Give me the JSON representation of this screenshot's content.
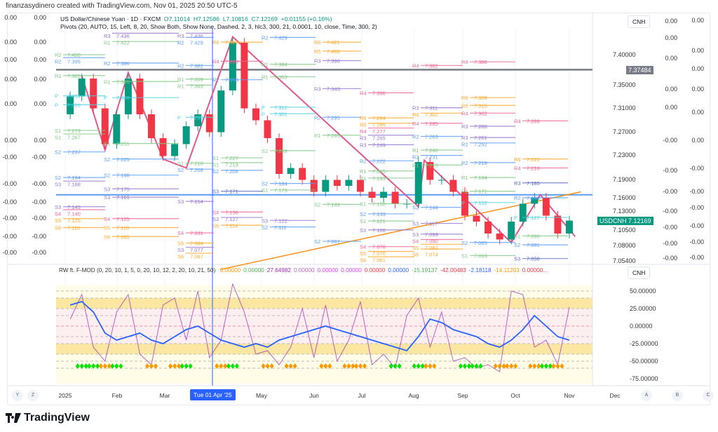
{
  "credit": "finanzasydinero created with TradingView.com, Nov 01, 2025 20:50 UTC-5",
  "legend": {
    "symbol": "US Dollar/Chinese Yuan · 1D · FXCM",
    "open": "O7.11014",
    "high": "H7.12586",
    "low": "L7.10816",
    "close": "C7.12169",
    "change": "+0.01155 (+0.16%)",
    "pivots": "Pivots (20, AUTO, 15, Left, 8, 20, Show Both, Show None, Dashed, 2, 3, hlc3, 300, 21, 0.0001, 10, close, Time, 300, 2)"
  },
  "price_axis": {
    "currency": "CNH",
    "labels": [
      "7.40000",
      "7.35000",
      "7.31000",
      "7.27000",
      "7.23000",
      "7.19000",
      "7.16000",
      "7.13000",
      "7.10500",
      "7.08000",
      "7.05400"
    ],
    "hline_badge": "7.37484",
    "symbol_badge": "USDCNH",
    "last_price": "7.12169"
  },
  "left_axis": {
    "col1": [
      "0.00",
      "0.00",
      "0.00",
      "0.00",
      "0.00",
      "0.00",
      "-0.00",
      "-0.00",
      "-0.00",
      "-0.00",
      "-0.00",
      "-0.00"
    ],
    "col2": [
      "0.00",
      "0.00",
      "0.00",
      "0.00",
      "0.00",
      "0.00",
      "-0.00",
      "-0.00",
      "-0.00",
      "-0.00",
      "-0.00",
      "-0.00"
    ]
  },
  "right_axis": {
    "col1": [
      "0.00",
      "0.00",
      "0.00",
      "0.00",
      "0.00",
      "-0.00",
      "-0.00",
      "-0.00",
      "-0.00",
      "-0.00",
      "-0.00",
      "-0.00"
    ],
    "col2": [
      "0.00",
      "0.00",
      "0.00",
      "0.00",
      "0.00",
      "0.00",
      "-0.00",
      "-0.00",
      "-0.00",
      "-0.00",
      "-0.00",
      "-0.00"
    ]
  },
  "indicator": {
    "title": "RW ft. F-MOD (0, 20, 10, 1, 5, 0, 20, 10, 12, 2, 20, 10, 21, 50)",
    "values": [
      {
        "v": "0.00000",
        "c": "#ff9800"
      },
      {
        "v": "0.00000",
        "c": "#4caf50"
      },
      {
        "v": "27.64982",
        "c": "#9c27b0"
      },
      {
        "v": "0.00000",
        "c": "#ba68c8"
      },
      {
        "v": "0.00000",
        "c": "#e040fb"
      },
      {
        "v": "0.00000",
        "c": "#e040fb"
      },
      {
        "v": "0.00000",
        "c": "#f23645"
      },
      {
        "v": "0.00000",
        "c": "#2962ff"
      },
      {
        "v": "-15.19137",
        "c": "#4caf50"
      },
      {
        "v": "-42.00483",
        "c": "#f23645"
      },
      {
        "v": "-2.18118",
        "c": "#2962ff"
      },
      {
        "v": "-14.11203",
        "c": "#ff9800"
      },
      {
        "v": "0.00000...",
        "c": "#f23645"
      }
    ],
    "currency": "CNH",
    "axis": [
      "50.00000",
      "25.00000",
      "0.00000",
      "-25.00000",
      "-50.00000",
      "-75.00000"
    ]
  },
  "time_axis": {
    "labels": [
      "2025",
      "Feb",
      "Mar",
      "May",
      "Jun",
      "Jul",
      "Aug",
      "Sep",
      "Oct",
      "Nov",
      "Dec"
    ],
    "crosshair": "Tue 01 Apr '25",
    "buttons_left": [
      "Y",
      "Z"
    ],
    "buttons_right": [
      "A",
      "B",
      "C"
    ]
  },
  "brand": "TradingView",
  "colors": {
    "up": "#089981",
    "down": "#f23645",
    "zigzag": "#e0588a",
    "trend": "#f7931a",
    "hline": "#787b86",
    "support": "#5b9cf6"
  },
  "chart_data": {
    "type": "candlestick",
    "title": "US Dollar/Chinese Yuan",
    "interval": "weekly approx",
    "start": "2025-01-01",
    "closes": [
      7.33,
      7.36,
      7.31,
      7.25,
      7.3,
      7.36,
      7.3,
      7.26,
      7.23,
      7.25,
      7.28,
      7.3,
      7.27,
      7.34,
      7.42,
      7.31,
      7.29,
      7.26,
      7.2,
      7.21,
      7.19,
      7.17,
      7.19,
      7.18,
      7.19,
      7.17,
      7.16,
      7.17,
      7.15,
      7.15,
      7.22,
      7.19,
      7.19,
      7.17,
      7.13,
      7.12,
      7.1,
      7.09,
      7.12,
      7.15,
      7.16,
      7.13,
      7.1,
      7.12169
    ],
    "first_open": 7.3,
    "hline": 7.37484,
    "support_line": 7.165,
    "trendline": [
      [
        13,
        7.04
      ],
      [
        44,
        7.17
      ]
    ],
    "zigzag": [
      [
        1,
        7.365
      ],
      [
        3,
        7.24
      ],
      [
        5,
        7.37
      ],
      [
        8,
        7.225
      ],
      [
        10,
        7.21
      ],
      [
        14,
        7.43
      ],
      [
        30,
        7.145
      ],
      [
        30.5,
        7.223
      ],
      [
        38,
        7.085
      ],
      [
        40.5,
        7.165
      ],
      [
        43.5,
        7.095
      ]
    ],
    "pivots": [
      [
        "R2",
        "7.400",
        0,
        "#81c784"
      ],
      [
        "R2",
        "7.395",
        0,
        "#5b9cf6"
      ],
      [
        "R1",
        "7.365",
        0,
        "#81c784"
      ],
      [
        "P",
        "7.331",
        0,
        "#4dd0e1"
      ],
      [
        "P",
        "7.316",
        0,
        "#4dd0e1"
      ],
      [
        "S1",
        "7.273",
        0,
        "#81c784"
      ],
      [
        "S1",
        "7.267",
        0,
        "#81c784"
      ],
      [
        "S2",
        "7.237",
        0,
        "#5b9cf6"
      ],
      [
        "S2",
        "7.194",
        0,
        "#5b9cf6"
      ],
      [
        "S3",
        "7.188",
        0,
        "#9575cd"
      ],
      [
        "S3",
        "7.145",
        0,
        "#9575cd"
      ],
      [
        "S4",
        "7.140",
        0,
        "#f06292"
      ],
      [
        "S5",
        "7.125",
        0,
        "#ffa726"
      ],
      [
        "S6",
        "7.110",
        0,
        "#ffa726"
      ],
      [
        "R3",
        "7.436",
        1,
        "#9575cd"
      ],
      [
        "R1",
        "7.422",
        1,
        "#81c784"
      ],
      [
        "R2",
        "7.386",
        1,
        "#5b9cf6"
      ],
      [
        "R1",
        "7.355",
        1,
        "#81c784"
      ],
      [
        "P",
        "7.328",
        1,
        "#4dd0e1"
      ],
      [
        "S1",
        "7.251",
        1,
        "#81c784"
      ],
      [
        "S2",
        "7.225",
        1,
        "#5b9cf6"
      ],
      [
        "S2",
        "7.198",
        1,
        "#5b9cf6"
      ],
      [
        "S3",
        "7.175",
        1,
        "#9575cd"
      ],
      [
        "S3",
        "7.161",
        1,
        "#9575cd"
      ],
      [
        "S4",
        "7.125",
        1,
        "#f06292"
      ],
      [
        "S5",
        "7.110",
        1,
        "#ffa726"
      ],
      [
        "S6",
        "7.095",
        1,
        "#ffa726"
      ],
      [
        "R3",
        "7.436",
        2,
        "#9575cd"
      ],
      [
        "R2",
        "7.429",
        2,
        "#5b9cf6"
      ],
      [
        "R2",
        "7.382",
        2,
        "#5b9cf6"
      ],
      [
        "R1",
        "7.359",
        2,
        "#81c784"
      ],
      [
        "R1",
        "7.349",
        2,
        "#81c784"
      ],
      [
        "P",
        "7.295",
        2,
        "#4dd0e1"
      ],
      [
        "S1",
        "7.218",
        2,
        "#81c784"
      ],
      [
        "S2",
        "7.208",
        2,
        "#5b9cf6"
      ],
      [
        "S3",
        "7.154",
        2,
        "#9575cd"
      ],
      [
        "S4",
        "7.101",
        2,
        "#f06292"
      ],
      [
        "S5",
        "7.084",
        2,
        "#ffa726"
      ],
      [
        "S3",
        "7.077",
        2,
        "#9575cd"
      ],
      [
        "S6",
        "7.067",
        2,
        "#ffa726"
      ],
      [
        "R6",
        "7.421",
        3,
        "#ffa726"
      ],
      [
        "R4",
        "7.389",
        3,
        "#f06292"
      ],
      [
        "R2",
        "7.358",
        3,
        "#5b9cf6"
      ],
      [
        "S1",
        "7.227",
        3,
        "#81c784"
      ],
      [
        "S1",
        "7.219",
        3,
        "#81c784"
      ],
      [
        "S2",
        "7.206",
        3,
        "#5b9cf6"
      ],
      [
        "S3",
        "7.171",
        3,
        "#5c6bc0"
      ],
      [
        "S4",
        "7.136",
        3,
        "#f06292"
      ],
      [
        "S3",
        "7.127",
        3,
        "#9575cd"
      ],
      [
        "S6",
        "7.114",
        3,
        "#ffa726"
      ],
      [
        "R2",
        "7.429",
        4,
        "#5b9cf6"
      ],
      [
        "R1",
        "7.384",
        4,
        "#81c784"
      ],
      [
        "R1",
        "7.363",
        4,
        "#81c784"
      ],
      [
        "P",
        "7.312",
        4,
        "#4dd0e1"
      ],
      [
        "P",
        "7.301",
        4,
        "#4dd0e1"
      ],
      [
        "S1",
        "7.239",
        4,
        "#81c784"
      ],
      [
        "S2",
        "7.184",
        4,
        "#5b9cf6"
      ],
      [
        "S1",
        "7.173",
        4,
        "#81c784"
      ],
      [
        "S3",
        "7.122",
        4,
        "#9575cd"
      ],
      [
        "S2",
        "7.111",
        4,
        "#5b9cf6"
      ],
      [
        "R6",
        "7.421",
        5,
        "#ffa726"
      ],
      [
        "R5",
        "7.406",
        5,
        "#ffa726"
      ],
      [
        "R3",
        "7.390",
        5,
        "#9575cd"
      ],
      [
        "R3",
        "7.343",
        5,
        "#9575cd"
      ],
      [
        "R2",
        "7.295",
        5,
        "#5b9cf6"
      ],
      [
        "R1",
        "7.265",
        5,
        "#81c784"
      ],
      [
        "S2",
        "7.149",
        5,
        "#81c784"
      ],
      [
        "S2",
        "7.087",
        5,
        "#5b9cf6"
      ],
      [
        "R4",
        "7.336",
        6,
        "#f06292"
      ],
      [
        "R6",
        "7.294",
        6,
        "#ffa726"
      ],
      [
        "R5",
        "7.285",
        6,
        "#ffa726"
      ],
      [
        "R4",
        "7.277",
        6,
        "#f06292"
      ],
      [
        "R3",
        "7.265",
        6,
        "#9575cd"
      ],
      [
        "R3",
        "7.249",
        6,
        "#9575cd"
      ],
      [
        "R2",
        "7.222",
        6,
        "#5b9cf6"
      ],
      [
        "R1",
        "7.205",
        6,
        "#81c784"
      ],
      [
        "R1",
        "7.193",
        6,
        "#81c784"
      ],
      [
        "S1",
        "7.150",
        6,
        "#81c784"
      ],
      [
        "S2",
        "7.133",
        6,
        "#5b9cf6"
      ],
      [
        "S1",
        "7.121",
        6,
        "#81c784"
      ],
      [
        "S3",
        "7.106",
        6,
        "#9575cd"
      ],
      [
        "S4",
        "7.078",
        6,
        "#f06292"
      ],
      [
        "S5",
        "7.070",
        6,
        "#ffa726"
      ],
      [
        "S6",
        "7.061",
        6,
        "#ffa726"
      ],
      [
        "R4",
        "7.382",
        7,
        "#f06292"
      ],
      [
        "R3",
        "7.311",
        7,
        "#9575cd"
      ],
      [
        "R6",
        "7.302",
        7,
        "#ffa726"
      ],
      [
        "R4",
        "7.285",
        7,
        "#f06292"
      ],
      [
        "R2",
        "7.263",
        7,
        "#5b9cf6"
      ],
      [
        "R1",
        "7.240",
        7,
        "#81c784"
      ],
      [
        "R2",
        "7.231",
        7,
        "#5b9cf6"
      ],
      [
        "R1",
        "7.215",
        7,
        "#81c784"
      ],
      [
        "S2",
        "7.144",
        7,
        "#5b9cf6"
      ],
      [
        "S3",
        "7.117",
        7,
        "#9575cd"
      ],
      [
        "S3",
        "7.099",
        7,
        "#9575cd"
      ],
      [
        "S4",
        "7.090",
        7,
        "#f06292"
      ],
      [
        "S5",
        "7.082",
        7,
        "#ffa726"
      ],
      [
        "S6",
        "7.074",
        7,
        "#ffa726"
      ],
      [
        "R4",
        "7.388",
        8,
        "#f06292"
      ],
      [
        "R6",
        "7.328",
        8,
        "#ffa726"
      ],
      [
        "R5",
        "7.315",
        8,
        "#ffa726"
      ],
      [
        "R4",
        "7.302",
        8,
        "#f06292"
      ],
      [
        "R3",
        "7.280",
        8,
        "#9575cd"
      ],
      [
        "R3",
        "7.261",
        8,
        "#9575cd"
      ],
      [
        "R2",
        "7.252",
        8,
        "#5b9cf6"
      ],
      [
        "R2",
        "7.219",
        8,
        "#5b9cf6"
      ],
      [
        "R1",
        "7.194",
        8,
        "#81c784"
      ],
      [
        "R1",
        "7.171",
        8,
        "#81c784"
      ],
      [
        "P",
        "7.152",
        8,
        "#4dd0e1"
      ],
      [
        "S2",
        "7.085",
        8,
        "#5b9cf6"
      ],
      [
        "S1",
        "7.063",
        8,
        "#81c784"
      ],
      [
        "R4",
        "7.289",
        9,
        "#f06292"
      ],
      [
        "R6",
        "7.225",
        9,
        "#ffa726"
      ],
      [
        "R4",
        "7.210",
        9,
        "#f06292"
      ],
      [
        "R3",
        "7.185",
        9,
        "#5c6bc0"
      ],
      [
        "R2",
        "7.160",
        9,
        "#5b9cf6"
      ],
      [
        "P",
        "7.127",
        9,
        "#4dd0e1"
      ],
      [
        "S1",
        "7.096",
        9,
        "#81c784"
      ],
      [
        "S2",
        "7.081",
        9,
        "#5b9cf6"
      ],
      [
        "S3",
        "7.058",
        9,
        "#5c6bc0"
      ]
    ],
    "oscillator": {
      "ylim": [
        -75,
        60
      ],
      "blue": [
        30,
        35,
        20,
        -10,
        -20,
        -15,
        -10,
        -20,
        -25,
        -15,
        -5,
        0,
        -10,
        -20,
        -25,
        -30,
        -25,
        -30,
        -20,
        -15,
        -10,
        -5,
        0,
        -5,
        -10,
        -15,
        -20,
        -25,
        -30,
        -35,
        -15,
        10,
        5,
        -5,
        -10,
        -15,
        -25,
        -30,
        -20,
        -5,
        15,
        0,
        -15,
        -20
      ],
      "purple": [
        10,
        45,
        -30,
        -50,
        20,
        45,
        -40,
        -55,
        30,
        40,
        -20,
        50,
        -45,
        -20,
        60,
        20,
        -40,
        -35,
        -55,
        -30,
        25,
        -45,
        30,
        -50,
        -20,
        35,
        -55,
        -40,
        -60,
        15,
        40,
        -30,
        20,
        -50,
        -45,
        -60,
        -55,
        -65,
        50,
        45,
        -30,
        -20,
        -55,
        27
      ],
      "markers": [
        [
          1,
          "#00e600"
        ],
        [
          2,
          "#00e600"
        ],
        [
          3,
          "#ff9800"
        ],
        [
          4,
          "#00e600"
        ],
        [
          7,
          "#ff9800"
        ],
        [
          9,
          "#ff9800"
        ],
        [
          10,
          "#00e600"
        ],
        [
          13,
          "#ff9800"
        ],
        [
          14,
          "#00e600"
        ],
        [
          17,
          "#ff9800"
        ],
        [
          19,
          "#ff9800"
        ],
        [
          22,
          "#ff9800"
        ],
        [
          24,
          "#ff9800"
        ],
        [
          25,
          "#ff9800"
        ],
        [
          28,
          "#00e600"
        ],
        [
          30,
          "#00e600"
        ],
        [
          31,
          "#ff9800"
        ],
        [
          34,
          "#00e600"
        ],
        [
          35,
          "#00e600"
        ],
        [
          37,
          "#ff9800"
        ],
        [
          38,
          "#ff9800"
        ],
        [
          40,
          "#ff9800"
        ],
        [
          41,
          "#00e600"
        ],
        [
          42,
          "#ff9800"
        ]
      ]
    }
  }
}
